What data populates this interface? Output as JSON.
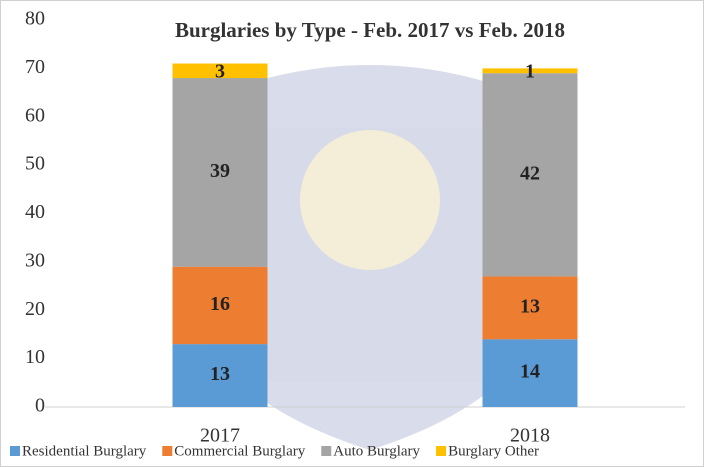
{
  "chart_data": {
    "type": "stacked_bar",
    "title": "Burglaries by  Type  - Feb. 2017 vs Feb. 2018",
    "categories": [
      "2017",
      "2018"
    ],
    "series": [
      {
        "name": "Residential Burglary",
        "color": "#5b9bd5",
        "values": [
          13,
          14
        ]
      },
      {
        "name": "Commercial Burglary",
        "color": "#ed7d31",
        "values": [
          16,
          13
        ]
      },
      {
        "name": "Auto Burglary",
        "color": "#a5a5a5",
        "values": [
          39,
          42
        ]
      },
      {
        "name": "Burglary Other",
        "color": "#ffc000",
        "values": [
          3,
          1
        ]
      }
    ],
    "ylim": [
      0,
      80
    ],
    "yticks": [
      0,
      10,
      20,
      30,
      40,
      50,
      60,
      70,
      80
    ],
    "grid": false,
    "legend": "bottom"
  }
}
